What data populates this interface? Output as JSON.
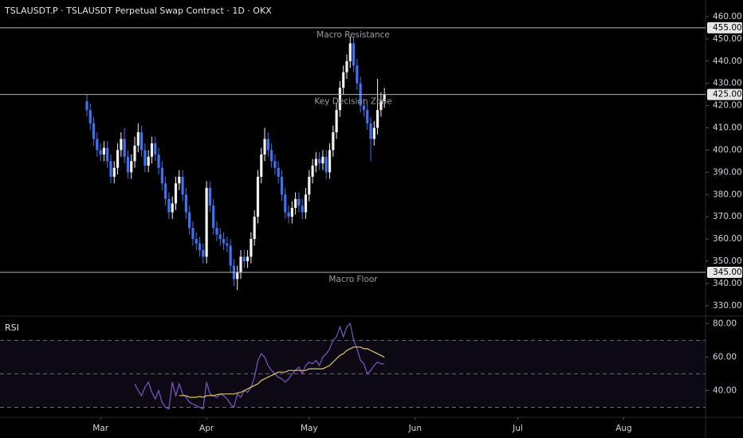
{
  "chart_data": [
    {
      "type": "candlestick",
      "title": "TSLAUSDT.P · TSLAUSDT Perpetual Swap Contract · 1D · OKX",
      "x": [
        -4,
        -3,
        -2,
        -1,
        0,
        1,
        2,
        3,
        4,
        5,
        6,
        7,
        8,
        9,
        10,
        11,
        12,
        13,
        14,
        15,
        16,
        17,
        18,
        19,
        20,
        21,
        22,
        23,
        24,
        25,
        26,
        27,
        28,
        29,
        30,
        31,
        32,
        33,
        34,
        35,
        36,
        37,
        38,
        39,
        40,
        41,
        42,
        43,
        44,
        45,
        46,
        47,
        48,
        49,
        50,
        51,
        52,
        53,
        54,
        55,
        56,
        57,
        58,
        59,
        60,
        61,
        62,
        63,
        64,
        65,
        66,
        67,
        68,
        69,
        70,
        71,
        72,
        73,
        74,
        75,
        76,
        77,
        78,
        79,
        80,
        81,
        82,
        83
      ],
      "open": [
        422,
        418,
        412,
        405,
        400,
        398,
        401,
        395,
        388,
        392,
        400,
        405,
        397,
        390,
        395,
        402,
        408,
        400,
        393,
        397,
        403,
        398,
        392,
        385,
        378,
        372,
        376,
        385,
        388,
        380,
        372,
        365,
        360,
        358,
        355,
        352,
        383,
        375,
        365,
        362,
        360,
        358,
        357,
        348,
        342,
        345,
        352,
        350,
        352,
        360,
        370,
        388,
        398,
        405,
        400,
        395,
        392,
        388,
        380,
        372,
        370,
        374,
        378,
        375,
        372,
        380,
        388,
        393,
        396,
        394,
        397,
        390,
        400,
        408,
        418,
        428,
        435,
        440,
        448,
        438,
        430,
        420,
        418,
        412,
        405,
        410,
        418,
        422
      ],
      "high": [
        425,
        421,
        415,
        408,
        403,
        404,
        404,
        398,
        395,
        403,
        408,
        410,
        400,
        398,
        406,
        412,
        411,
        403,
        400,
        406,
        406,
        401,
        395,
        388,
        381,
        379,
        388,
        391,
        391,
        383,
        375,
        368,
        363,
        361,
        358,
        386,
        386,
        378,
        368,
        365,
        363,
        361,
        360,
        351,
        348,
        355,
        355,
        355,
        363,
        373,
        391,
        401,
        410,
        408,
        403,
        398,
        395,
        391,
        383,
        375,
        377,
        381,
        381,
        378,
        383,
        391,
        396,
        399,
        399,
        400,
        400,
        403,
        411,
        421,
        431,
        438,
        443,
        451,
        451,
        441,
        433,
        423,
        421,
        415,
        413,
        432,
        426,
        428
      ],
      "low": [
        415,
        409,
        402,
        397,
        395,
        395,
        392,
        385,
        385,
        389,
        397,
        394,
        387,
        387,
        392,
        399,
        397,
        390,
        390,
        394,
        395,
        389,
        382,
        375,
        369,
        369,
        373,
        382,
        377,
        369,
        362,
        357,
        355,
        352,
        349,
        349,
        372,
        362,
        359,
        357,
        355,
        354,
        345,
        339,
        337,
        342,
        347,
        347,
        349,
        357,
        367,
        385,
        395,
        397,
        392,
        389,
        385,
        377,
        369,
        367,
        367,
        371,
        372,
        369,
        369,
        377,
        385,
        390,
        391,
        391,
        387,
        387,
        397,
        405,
        415,
        425,
        432,
        437,
        435,
        427,
        417,
        415,
        409,
        395,
        402,
        407,
        415,
        419
      ],
      "close": [
        418,
        412,
        405,
        400,
        398,
        401,
        395,
        388,
        392,
        400,
        405,
        397,
        390,
        395,
        402,
        408,
        400,
        393,
        397,
        403,
        398,
        392,
        385,
        378,
        372,
        376,
        385,
        388,
        380,
        372,
        365,
        360,
        358,
        355,
        352,
        383,
        375,
        365,
        362,
        360,
        358,
        357,
        348,
        342,
        345,
        352,
        350,
        352,
        360,
        370,
        388,
        398,
        405,
        400,
        395,
        392,
        388,
        380,
        372,
        370,
        374,
        378,
        375,
        372,
        380,
        388,
        393,
        396,
        394,
        397,
        390,
        400,
        408,
        418,
        428,
        435,
        440,
        448,
        438,
        430,
        420,
        418,
        412,
        405,
        410,
        418,
        422,
        425
      ],
      "up_color": "#f2f2f2",
      "down_color": "#3f72f0",
      "xlim": [
        -29.4,
        176.9
      ],
      "ylim": [
        326,
        467.5
      ],
      "yticks": [
        {
          "value": 330,
          "label": "330.00"
        },
        {
          "value": 340,
          "label": "340.00"
        },
        {
          "value": 350,
          "label": "350.00"
        },
        {
          "value": 360,
          "label": "360.00"
        },
        {
          "value": 370,
          "label": "370.00"
        },
        {
          "value": 380,
          "label": "380.00"
        },
        {
          "value": 390,
          "label": "390.00"
        },
        {
          "value": 400,
          "label": "400.00"
        },
        {
          "value": 410,
          "label": "410.00"
        },
        {
          "value": 420,
          "label": "420.00"
        },
        {
          "value": 430,
          "label": "430.00"
        },
        {
          "value": 440,
          "label": "440.00"
        },
        {
          "value": 450,
          "label": "450.00"
        },
        {
          "value": 460,
          "label": "460.00"
        }
      ],
      "hlines": [
        {
          "value": 455,
          "label": "455.00",
          "text": "Macro Resistance"
        },
        {
          "value": 425,
          "label": "425.00",
          "text": "Key Decision Zone"
        },
        {
          "value": 345,
          "label": "345.00",
          "text": "Macro Floor"
        }
      ]
    },
    {
      "type": "line",
      "title": "RSI",
      "x": [
        -4,
        -3,
        -2,
        -1,
        0,
        1,
        2,
        3,
        4,
        5,
        6,
        7,
        8,
        9,
        10,
        11,
        12,
        13,
        14,
        15,
        16,
        17,
        18,
        19,
        20,
        21,
        22,
        23,
        24,
        25,
        26,
        27,
        28,
        29,
        30,
        31,
        32,
        33,
        34,
        35,
        36,
        37,
        38,
        39,
        40,
        41,
        42,
        43,
        44,
        45,
        46,
        47,
        48,
        49,
        50,
        51,
        52,
        53,
        54,
        55,
        56,
        57,
        58,
        59,
        60,
        61,
        62,
        63,
        64,
        65,
        66,
        67,
        68,
        69,
        70,
        71,
        72,
        73,
        74,
        75,
        76,
        77,
        78,
        79,
        80,
        81,
        82,
        83
      ],
      "series": [
        {
          "color": "#7e57c2",
          "values": [
            null,
            null,
            null,
            null,
            null,
            null,
            null,
            null,
            null,
            null,
            null,
            null,
            null,
            null,
            44,
            40,
            37,
            42,
            45,
            39,
            35,
            40,
            33,
            30,
            29,
            45,
            37,
            44,
            38,
            36,
            33,
            32,
            31,
            30,
            29,
            45,
            38,
            37,
            36,
            38,
            37,
            35,
            32,
            30,
            38,
            36,
            40,
            39,
            42,
            48,
            58,
            62,
            60,
            55,
            52,
            50,
            48,
            47,
            45,
            47,
            50,
            52,
            54,
            50,
            55,
            57,
            56,
            58,
            55,
            60,
            62,
            65,
            70,
            72,
            78,
            72,
            78,
            80,
            70,
            65,
            58,
            56,
            50,
            52,
            55,
            57,
            56,
            56
          ]
        },
        {
          "color": "#e3c46d",
          "values": [
            null,
            null,
            null,
            null,
            null,
            null,
            null,
            null,
            null,
            null,
            null,
            null,
            null,
            null,
            null,
            null,
            null,
            null,
            null,
            null,
            null,
            null,
            null,
            null,
            null,
            null,
            null,
            37,
            37,
            37,
            36,
            36,
            36,
            36.5,
            36,
            37,
            37,
            37,
            37.5,
            38,
            38,
            38,
            38,
            38,
            38.5,
            39,
            40,
            41,
            42,
            43,
            44,
            46,
            47,
            48,
            49,
            50,
            51,
            51,
            51,
            52,
            52,
            52,
            52,
            52,
            52,
            53,
            53,
            53,
            53,
            53,
            54,
            55,
            57,
            59,
            61,
            62,
            64,
            65,
            66,
            66,
            66,
            65,
            65,
            64,
            63,
            62,
            61,
            60
          ]
        }
      ],
      "band": [
        30,
        70
      ],
      "levels": [
        70,
        50,
        30
      ],
      "xlim": [
        -29.4,
        176.9
      ],
      "ylim": [
        25,
        83
      ],
      "yticks": [
        {
          "value": 40,
          "label": "40.00"
        },
        {
          "value": 60,
          "label": "60.00"
        },
        {
          "value": 80,
          "label": "80.00"
        }
      ],
      "xticks": [
        {
          "value": 0,
          "label": "Mar"
        },
        {
          "value": 31,
          "label": "Apr"
        },
        {
          "value": 61,
          "label": "May"
        },
        {
          "value": 92,
          "label": "Jun"
        },
        {
          "value": 122,
          "label": "Jul"
        },
        {
          "value": 153,
          "label": "Aug"
        }
      ]
    }
  ]
}
